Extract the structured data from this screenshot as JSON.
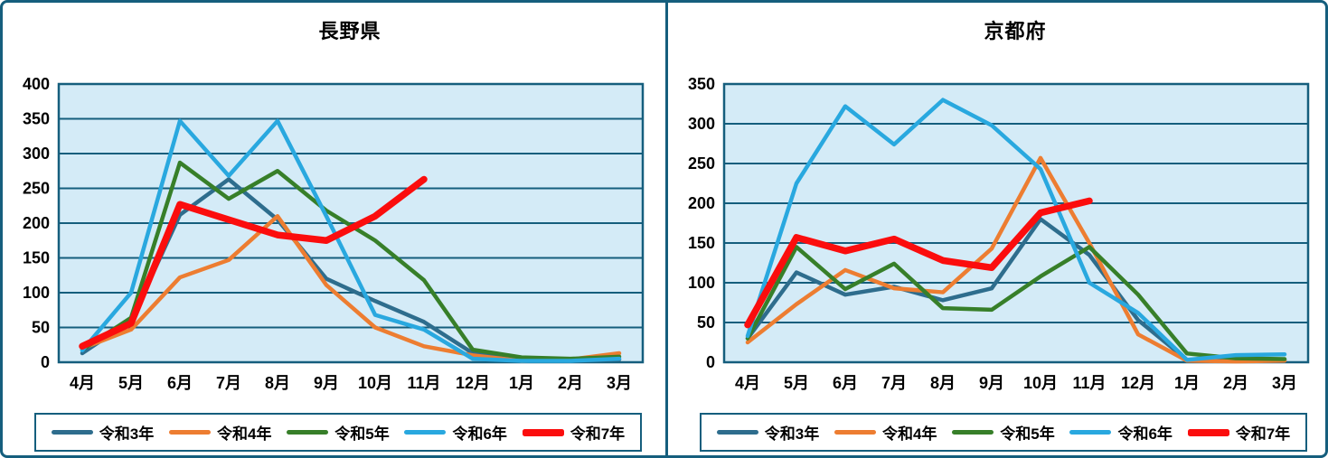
{
  "page": {
    "border_color": "#155e7d",
    "plot_background": "#d4ebf7",
    "gridline_color": "#155e7d",
    "text_color": "#000000"
  },
  "chart_data": [
    {
      "type": "line",
      "title": "長野県",
      "categories": [
        "4月",
        "5月",
        "6月",
        "7月",
        "8月",
        "9月",
        "10月",
        "11月",
        "12月",
        "1月",
        "2月",
        "3月"
      ],
      "ylim": [
        0,
        400
      ],
      "ytick_step": 50,
      "grid": true,
      "legend_position": "bottom",
      "series": [
        {
          "name": "令和3年",
          "color": "#2e6d8d",
          "values": [
            13,
            60,
            212,
            263,
            205,
            120,
            88,
            58,
            13,
            3,
            2,
            4
          ]
        },
        {
          "name": "令和4年",
          "color": "#ed7d31",
          "values": [
            20,
            47,
            122,
            147,
            210,
            111,
            50,
            23,
            10,
            2,
            4,
            13
          ]
        },
        {
          "name": "令和5年",
          "color": "#377f29",
          "values": [
            18,
            64,
            287,
            235,
            275,
            218,
            175,
            118,
            18,
            7,
            5,
            8
          ]
        },
        {
          "name": "令和6年",
          "color": "#29a8df",
          "values": [
            17,
            100,
            347,
            268,
            347,
            210,
            68,
            47,
            5,
            2,
            2,
            5
          ]
        },
        {
          "name": "令和7年",
          "color": "#fb0d0d",
          "emphasis": true,
          "values": [
            23,
            56,
            227,
            205,
            183,
            175,
            210,
            263
          ]
        }
      ]
    },
    {
      "type": "line",
      "title": "京都府",
      "categories": [
        "4月",
        "5月",
        "6月",
        "7月",
        "8月",
        "9月",
        "10月",
        "11月",
        "12月",
        "1月",
        "2月",
        "3月"
      ],
      "ylim": [
        0,
        350
      ],
      "ytick_step": 50,
      "grid": true,
      "legend_position": "bottom",
      "series": [
        {
          "name": "令和3年",
          "color": "#2e6d8d",
          "values": [
            30,
            113,
            85,
            95,
            78,
            93,
            180,
            135,
            53,
            3,
            2,
            3
          ]
        },
        {
          "name": "令和4年",
          "color": "#ed7d31",
          "values": [
            25,
            73,
            116,
            93,
            88,
            143,
            257,
            150,
            35,
            2,
            1,
            2
          ]
        },
        {
          "name": "令和5年",
          "color": "#377f29",
          "values": [
            30,
            145,
            92,
            124,
            68,
            66,
            108,
            145,
            85,
            11,
            5,
            4
          ]
        },
        {
          "name": "令和6年",
          "color": "#29a8df",
          "values": [
            33,
            225,
            322,
            274,
            330,
            298,
            243,
            100,
            62,
            3,
            9,
            10
          ]
        },
        {
          "name": "令和7年",
          "color": "#fb0d0d",
          "emphasis": true,
          "values": [
            47,
            157,
            140,
            155,
            128,
            119,
            188,
            203
          ]
        }
      ]
    }
  ]
}
